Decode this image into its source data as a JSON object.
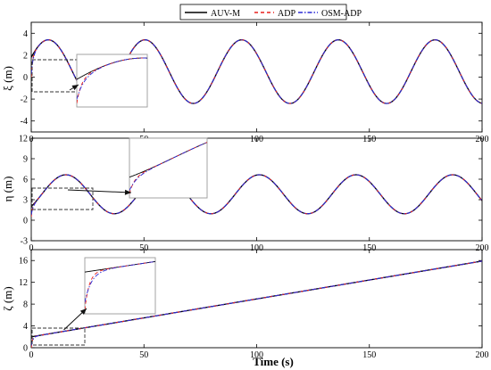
{
  "chart_data": {
    "type": "line",
    "xlabel": "Time (s)",
    "legend": {
      "placement": "top-center",
      "entries": [
        "AUV-M",
        "ADP",
        "OSM-ADP"
      ]
    },
    "colors": {
      "AUV-M": "#000000",
      "ADP": "#e8211d",
      "OSM-ADP": "#2b2bd6",
      "zoom_box": "#9a9a9a",
      "dashed_box": "#333333"
    },
    "subplots": [
      {
        "name": "xi",
        "ylabel": "ξ (m)",
        "xlim": [
          0,
          200
        ],
        "ylim": [
          -5,
          5
        ],
        "xticks": [
          "0",
          "50",
          "100",
          "150",
          "200"
        ],
        "yticks": [
          "-4",
          "-2",
          "0",
          "2",
          "4"
        ],
        "series": [
          {
            "name": "AUV-M",
            "model": "reference",
            "offset": 0.5,
            "amplitude": 2.9,
            "period": 42.9,
            "start": 1.8
          },
          {
            "name": "ADP",
            "model": "tracking",
            "initial": 0.0,
            "settle_time": 2.0
          },
          {
            "name": "OSM-ADP",
            "model": "tracking",
            "initial": 0.3,
            "settle_time": 3.0
          }
        ],
        "zoom": {
          "has_inset": true
        }
      },
      {
        "name": "eta",
        "ylabel": "η (m)",
        "xlim": [
          0,
          200
        ],
        "ylim": [
          -3,
          12
        ],
        "xticks": [
          "0",
          "50",
          "100",
          "150",
          "200"
        ],
        "yticks": [
          "-3",
          "0",
          "3",
          "6",
          "9",
          "12"
        ],
        "series": [
          {
            "name": "AUV-M",
            "model": "reference",
            "offset": 3.8,
            "amplitude": 2.85,
            "period": 42.9,
            "start": 2.0
          },
          {
            "name": "ADP",
            "model": "tracking",
            "initial": 0.5,
            "settle_time": 2.0
          },
          {
            "name": "OSM-ADP",
            "model": "tracking",
            "initial": 0.8,
            "settle_time": 3.0
          }
        ],
        "zoom": {
          "has_inset": true
        }
      },
      {
        "name": "zeta",
        "ylabel": "ζ (m)",
        "xlim": [
          0,
          200
        ],
        "ylim": [
          0,
          18
        ],
        "xticks": [
          "0",
          "50",
          "100",
          "150",
          "200"
        ],
        "yticks": [
          "0",
          "4",
          "8",
          "12",
          "16"
        ],
        "series": [
          {
            "name": "AUV-M",
            "model": "ramp",
            "start_value": 2.0,
            "end_value": 15.9
          },
          {
            "name": "ADP",
            "model": "tracking",
            "initial": 0.0,
            "settle_time": 2.0
          },
          {
            "name": "OSM-ADP",
            "model": "tracking",
            "initial": 0.4,
            "settle_time": 3.0
          }
        ],
        "zoom": {
          "has_inset": true
        }
      }
    ]
  }
}
